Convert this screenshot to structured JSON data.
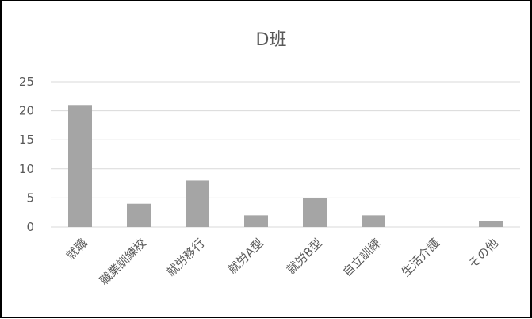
{
  "chart_data": {
    "type": "bar",
    "title": "D班",
    "categories": [
      "就職",
      "職業訓練校",
      "就労移行",
      "就労A型",
      "就労B型",
      "自立訓練",
      "生活介護",
      "その他"
    ],
    "values": [
      21,
      4,
      8,
      2,
      5,
      2,
      0,
      1
    ],
    "ylim": [
      0,
      25
    ],
    "yticks": [
      0,
      5,
      10,
      15,
      20,
      25
    ],
    "grid": true,
    "bar_color": "#a5a5a5",
    "grid_color": "#d9d9d9",
    "text_color": "#595959"
  }
}
